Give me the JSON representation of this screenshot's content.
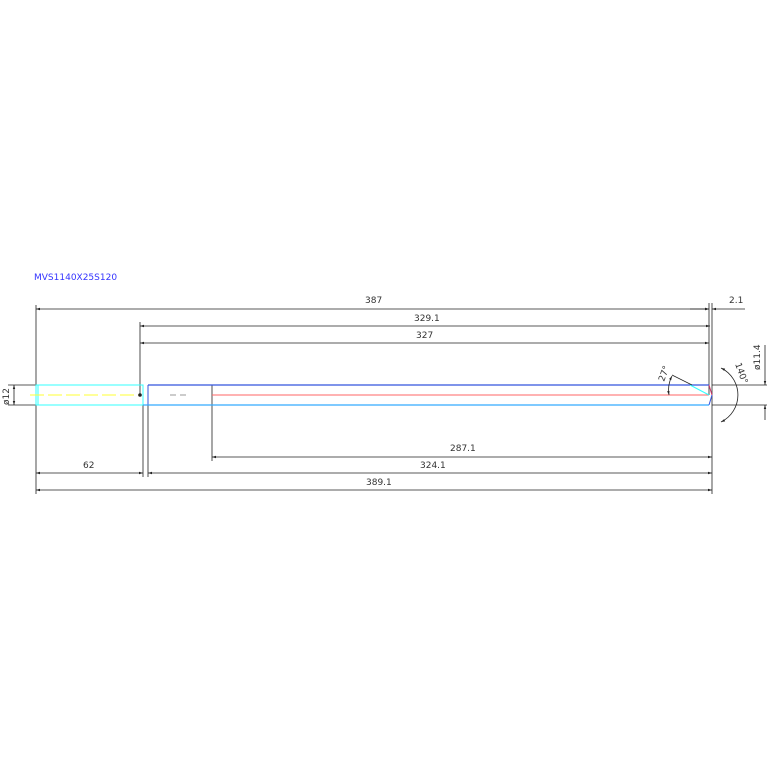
{
  "title": "MVS1140X25S120",
  "dimensions": {
    "overall_387": "387",
    "tip_2_1": "2.1",
    "len_329_1": "329.1",
    "len_327": "327",
    "len_287_1": "287.1",
    "shank_62": "62",
    "len_324_1": "324.1",
    "overall_389_1": "389.1",
    "shank_dia": "ø12",
    "tip_dia": "ø11.4",
    "angle_27": "27°",
    "angle_140": "140°"
  },
  "colors": {
    "title": "#3333ff",
    "shank": "#33ffff",
    "body_top": "#3355dd",
    "body_bottom": "#33aaff",
    "centerline_shank": "#ffff33",
    "centerline_body": "#ff6666",
    "dimension": "#222222"
  }
}
